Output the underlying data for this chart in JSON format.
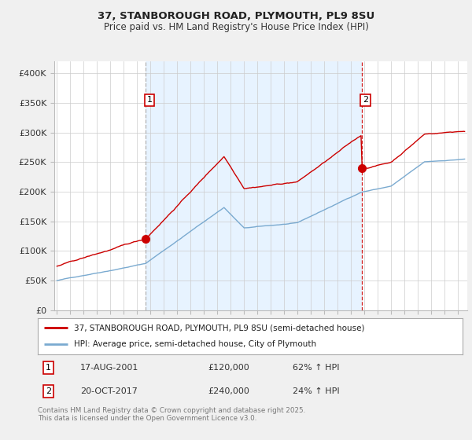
{
  "title1": "37, STANBOROUGH ROAD, PLYMOUTH, PL9 8SU",
  "title2": "Price paid vs. HM Land Registry's House Price Index (HPI)",
  "ylabel_ticks": [
    "£0",
    "£50K",
    "£100K",
    "£150K",
    "£200K",
    "£250K",
    "£300K",
    "£350K",
    "£400K"
  ],
  "ytick_values": [
    0,
    50000,
    100000,
    150000,
    200000,
    250000,
    300000,
    350000,
    400000
  ],
  "ylim": [
    0,
    420000
  ],
  "xlim_start": 1994.8,
  "xlim_end": 2025.7,
  "xticks": [
    1995,
    1996,
    1997,
    1998,
    1999,
    2000,
    2001,
    2002,
    2003,
    2004,
    2005,
    2006,
    2007,
    2008,
    2009,
    2010,
    2011,
    2012,
    2013,
    2014,
    2015,
    2016,
    2017,
    2018,
    2019,
    2020,
    2021,
    2022,
    2023,
    2024,
    2025
  ],
  "purchase1_x": 2001.62,
  "purchase1_y": 120000,
  "purchase1_label": "1",
  "purchase1_date": "17-AUG-2001",
  "purchase1_price": "£120,000",
  "purchase1_hpi": "62% ↑ HPI",
  "purchase2_x": 2017.79,
  "purchase2_y": 240000,
  "purchase2_label": "2",
  "purchase2_date": "20-OCT-2017",
  "purchase2_price": "£240,000",
  "purchase2_hpi": "24% ↑ HPI",
  "line1_color": "#cc0000",
  "line2_color": "#7aaad0",
  "vline1_color": "#aaaaaa",
  "vline2_color": "#cc0000",
  "fill_color": "#ddeeff",
  "bg_color": "#f0f0f0",
  "plot_bg_color": "#ffffff",
  "grid_color": "#cccccc",
  "legend1_label": "37, STANBOROUGH ROAD, PLYMOUTH, PL9 8SU (semi-detached house)",
  "legend2_label": "HPI: Average price, semi-detached house, City of Plymouth",
  "footer": "Contains HM Land Registry data © Crown copyright and database right 2025.\nThis data is licensed under the Open Government Licence v3.0."
}
